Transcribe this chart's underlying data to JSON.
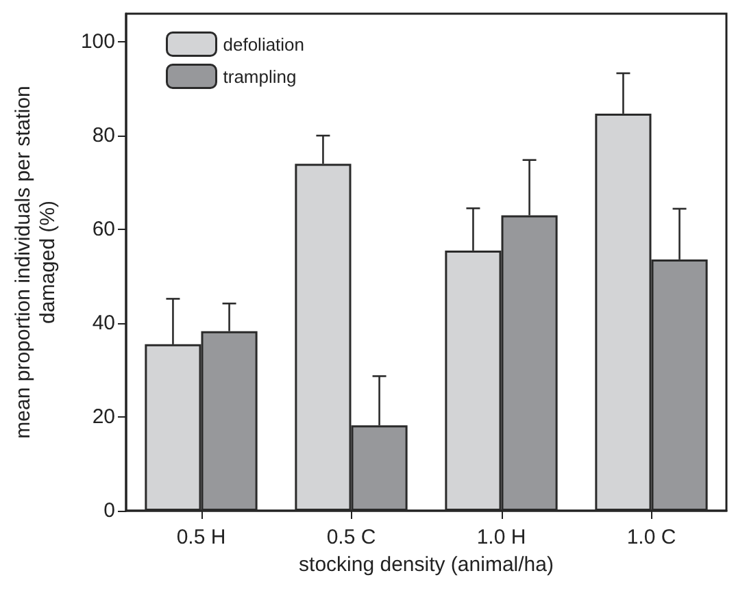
{
  "chart_data": {
    "type": "bar",
    "xlabel": "stocking density (animal/ha)",
    "ylabel": "mean proportion individuals per station\ndamaged (%)",
    "categories": [
      "0.5 H",
      "0.5 C",
      "1.0 H",
      "1.0 C"
    ],
    "series": [
      {
        "name": "defoliation",
        "color": "#d3d4d6",
        "values": [
          35.5,
          74,
          55.5,
          84.7
        ],
        "errors": [
          [
            35.5,
            45.2
          ],
          [
            74,
            80
          ],
          [
            55.5,
            64.5
          ],
          [
            84.7,
            93.3
          ]
        ]
      },
      {
        "name": "trampling",
        "color": "#97989b",
        "values": [
          38.3,
          18.2,
          63,
          53.6
        ],
        "errors": [
          [
            38.3,
            44.2
          ],
          [
            18.2,
            28.7
          ],
          [
            63,
            74.8
          ],
          [
            53.6,
            64.4
          ]
        ]
      }
    ],
    "ylim": [
      0,
      106
    ],
    "yticks": [
      0,
      20,
      40,
      60,
      80,
      100
    ],
    "grid": false,
    "legend": "top left"
  }
}
